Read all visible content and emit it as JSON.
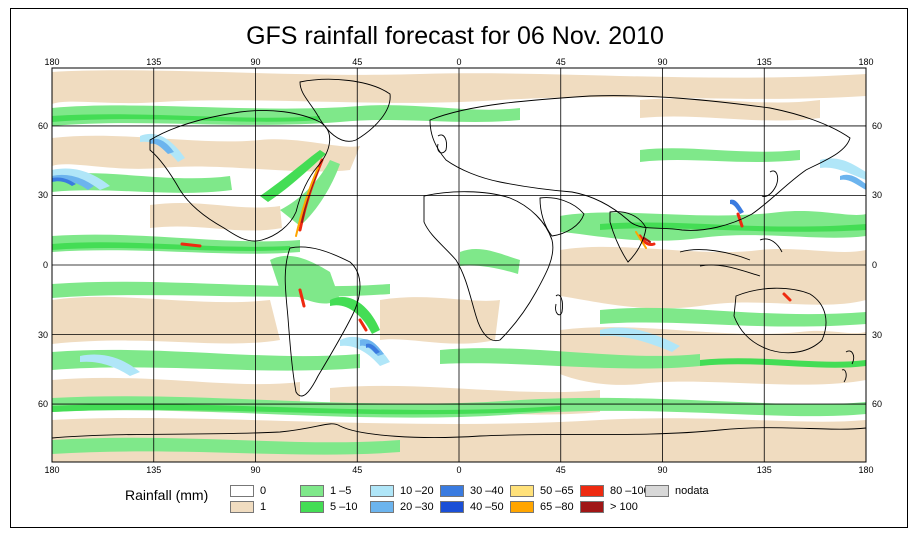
{
  "title": "GFS rainfall forecast for 06 Nov. 2010",
  "map": {
    "lon_labels": [
      "180",
      "135",
      "90",
      "45",
      "0",
      "45",
      "90",
      "135",
      "180"
    ],
    "lat_labels": [
      "60",
      "30",
      "0",
      "30",
      "60"
    ],
    "lat_values": [
      60,
      30,
      0,
      -30,
      -60
    ],
    "lon_values": [
      -180,
      -135,
      -90,
      -45,
      0,
      45,
      90,
      135,
      180
    ],
    "lat_range": [
      -85,
      85
    ],
    "lon_range": [
      -180,
      180
    ]
  },
  "legend": {
    "title": "Rainfall (mm)",
    "items": [
      {
        "label": "0",
        "color": "#ffffff"
      },
      {
        "label": "1",
        "color": "#f0dcc0"
      },
      {
        "label": "1 –5",
        "color": "#7fe88a"
      },
      {
        "label": "5 –10",
        "color": "#44dd55"
      },
      {
        "label": "10 –20",
        "color": "#b0e6f8"
      },
      {
        "label": "20 –30",
        "color": "#6cb4ee"
      },
      {
        "label": "30 –40",
        "color": "#3a7be0"
      },
      {
        "label": "40 –50",
        "color": "#1a4fd6"
      },
      {
        "label": "50 –65",
        "color": "#ffe17a"
      },
      {
        "label": "65 –80",
        "color": "#ffa500"
      },
      {
        "label": "80 –100",
        "color": "#ee2a10"
      },
      {
        "label": "> 100",
        "color": "#a01616"
      },
      {
        "label": "nodata",
        "color": "#d8d8d8"
      }
    ]
  }
}
